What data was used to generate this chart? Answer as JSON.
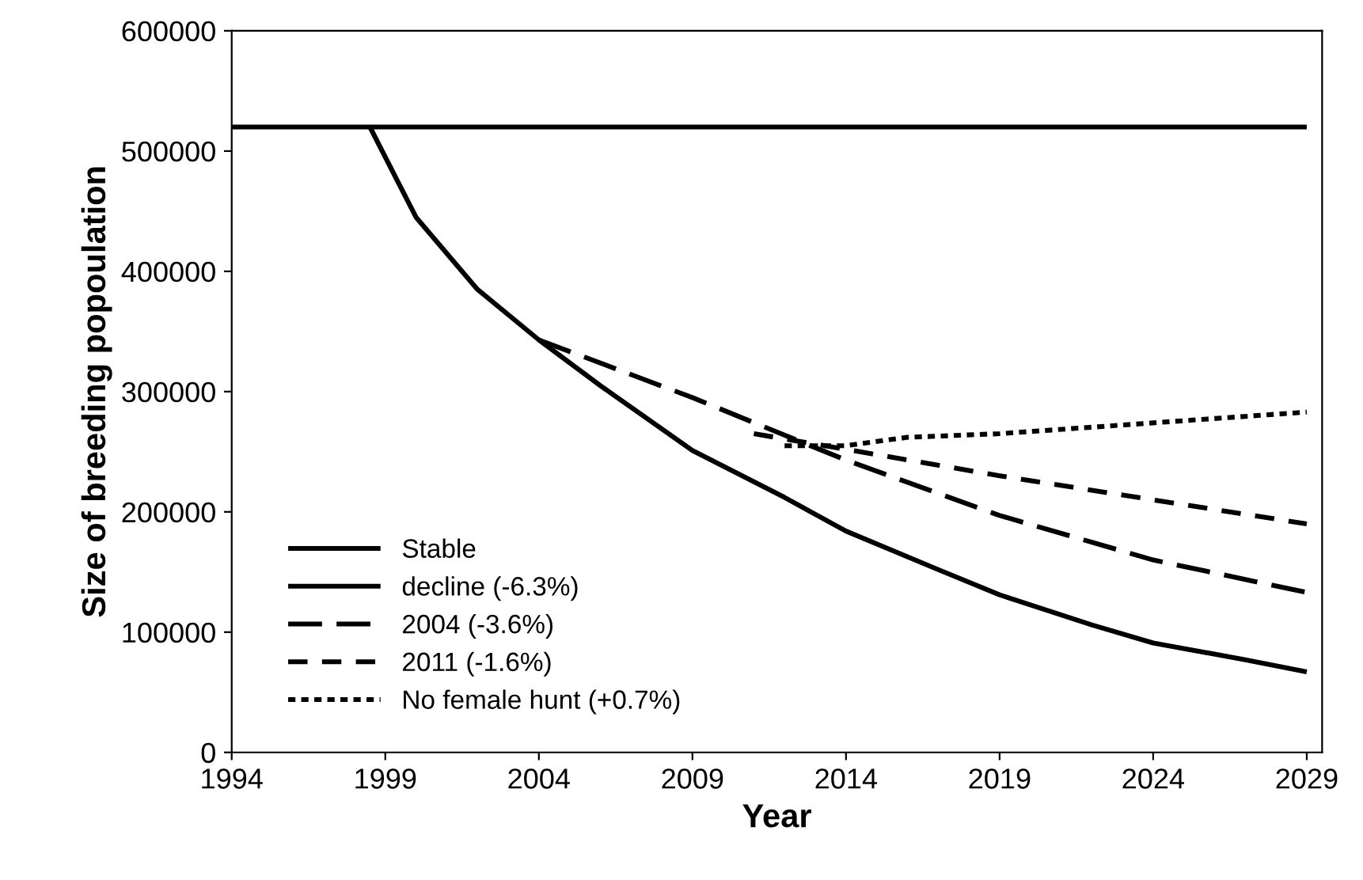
{
  "chart_data": {
    "type": "line",
    "xlabel": "Year",
    "ylabel": "Size of breeding popoulation",
    "xlim": [
      1994,
      2029.5
    ],
    "xticks": [
      1994,
      1999,
      2004,
      2009,
      2014,
      2019,
      2024,
      2029
    ],
    "ylim": [
      0,
      600000
    ],
    "yticks": [
      0,
      100000,
      200000,
      300000,
      400000,
      500000,
      600000
    ],
    "grid": false,
    "legend": "bottom left",
    "marker": "none",
    "series": [
      {
        "name": "Stable",
        "color": "#000000",
        "line_style": "solid",
        "x": [
          1994,
          2029
        ],
        "values": [
          520000,
          520000
        ]
      },
      {
        "name": "decline (-6.3%)",
        "color": "#000000",
        "line_style": "solid",
        "x": [
          1998.5,
          2000,
          2002,
          2004,
          2006,
          2009,
          2012,
          2014,
          2017,
          2019,
          2022,
          2024,
          2027,
          2029
        ],
        "values": [
          520000,
          445000,
          385000,
          343000,
          305000,
          251000,
          212000,
          184000,
          152000,
          131000,
          106000,
          91000,
          77000,
          67000
        ]
      },
      {
        "name": "2004 (-3.6%)",
        "color": "#000000",
        "line_style": "longdash",
        "x": [
          2004,
          2009,
          2014,
          2019,
          2024,
          2029
        ],
        "values": [
          343000,
          295000,
          243000,
          197000,
          160000,
          133000
        ]
      },
      {
        "name": "2011 (-1.6%)",
        "color": "#000000",
        "line_style": "dashed",
        "x": [
          2011,
          2014,
          2019,
          2024,
          2029
        ],
        "values": [
          265000,
          252000,
          230000,
          210000,
          190000
        ]
      },
      {
        "name": "No female hunt (+0.7%)",
        "color": "#000000",
        "line_style": "dotted",
        "x": [
          2012,
          2014,
          2016,
          2019,
          2024,
          2029
        ],
        "values": [
          255000,
          255000,
          262000,
          265000,
          274000,
          283000
        ]
      }
    ]
  }
}
